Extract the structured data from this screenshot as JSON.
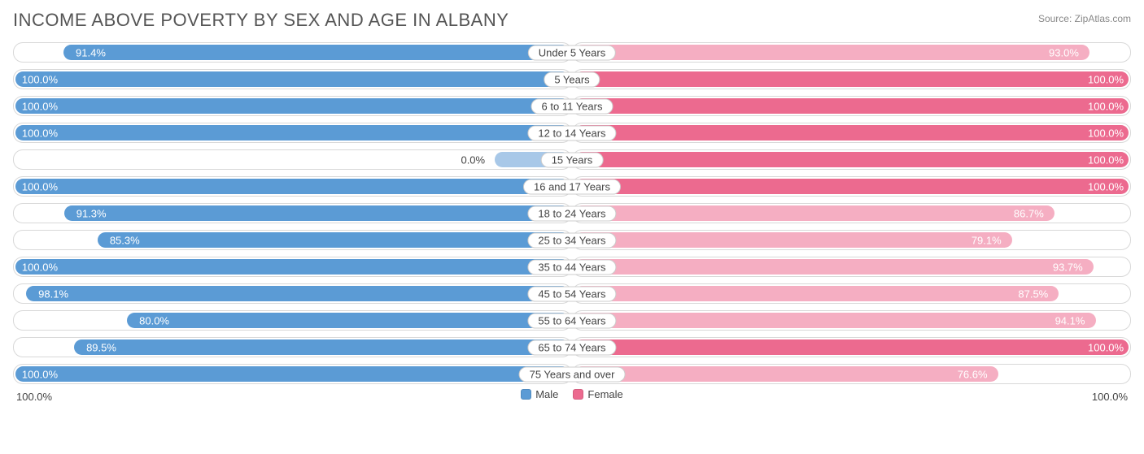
{
  "title": "INCOME ABOVE POVERTY BY SEX AND AGE IN ALBANY",
  "source": "Source: ZipAtlas.com",
  "axis": {
    "left": "100.0%",
    "right": "100.0%"
  },
  "legend": {
    "male": {
      "label": "Male",
      "color": "#5b9bd5"
    },
    "female": {
      "label": "Female",
      "color": "#ec6a8f"
    }
  },
  "colors": {
    "male_fill": "#5b9bd5",
    "male_light": "#a8c8e8",
    "female_fill": "#ec6a8f",
    "female_light": "#f5aec2",
    "track_border": "#d8d8d8",
    "text_dark": "#444444",
    "text_light": "#ffffff"
  },
  "max_scale": 100.0,
  "rows": [
    {
      "category": "Under 5 Years",
      "male": 91.4,
      "male_label": "91.4%",
      "female": 93.0,
      "female_label": "93.0%"
    },
    {
      "category": "5 Years",
      "male": 100.0,
      "male_label": "100.0%",
      "female": 100.0,
      "female_label": "100.0%"
    },
    {
      "category": "6 to 11 Years",
      "male": 100.0,
      "male_label": "100.0%",
      "female": 100.0,
      "female_label": "100.0%"
    },
    {
      "category": "12 to 14 Years",
      "male": 100.0,
      "male_label": "100.0%",
      "female": 100.0,
      "female_label": "100.0%"
    },
    {
      "category": "15 Years",
      "male": 0.0,
      "male_label": "0.0%",
      "female": 100.0,
      "female_label": "100.0%"
    },
    {
      "category": "16 and 17 Years",
      "male": 100.0,
      "male_label": "100.0%",
      "female": 100.0,
      "female_label": "100.0%"
    },
    {
      "category": "18 to 24 Years",
      "male": 91.3,
      "male_label": "91.3%",
      "female": 86.7,
      "female_label": "86.7%"
    },
    {
      "category": "25 to 34 Years",
      "male": 85.3,
      "male_label": "85.3%",
      "female": 79.1,
      "female_label": "79.1%"
    },
    {
      "category": "35 to 44 Years",
      "male": 100.0,
      "male_label": "100.0%",
      "female": 93.7,
      "female_label": "93.7%"
    },
    {
      "category": "45 to 54 Years",
      "male": 98.1,
      "male_label": "98.1%",
      "female": 87.5,
      "female_label": "87.5%"
    },
    {
      "category": "55 to 64 Years",
      "male": 80.0,
      "male_label": "80.0%",
      "female": 94.1,
      "female_label": "94.1%"
    },
    {
      "category": "65 to 74 Years",
      "male": 89.5,
      "male_label": "89.5%",
      "female": 100.0,
      "female_label": "100.0%"
    },
    {
      "category": "75 Years and over",
      "male": 100.0,
      "male_label": "100.0%",
      "female": 76.6,
      "female_label": "76.6%"
    }
  ]
}
